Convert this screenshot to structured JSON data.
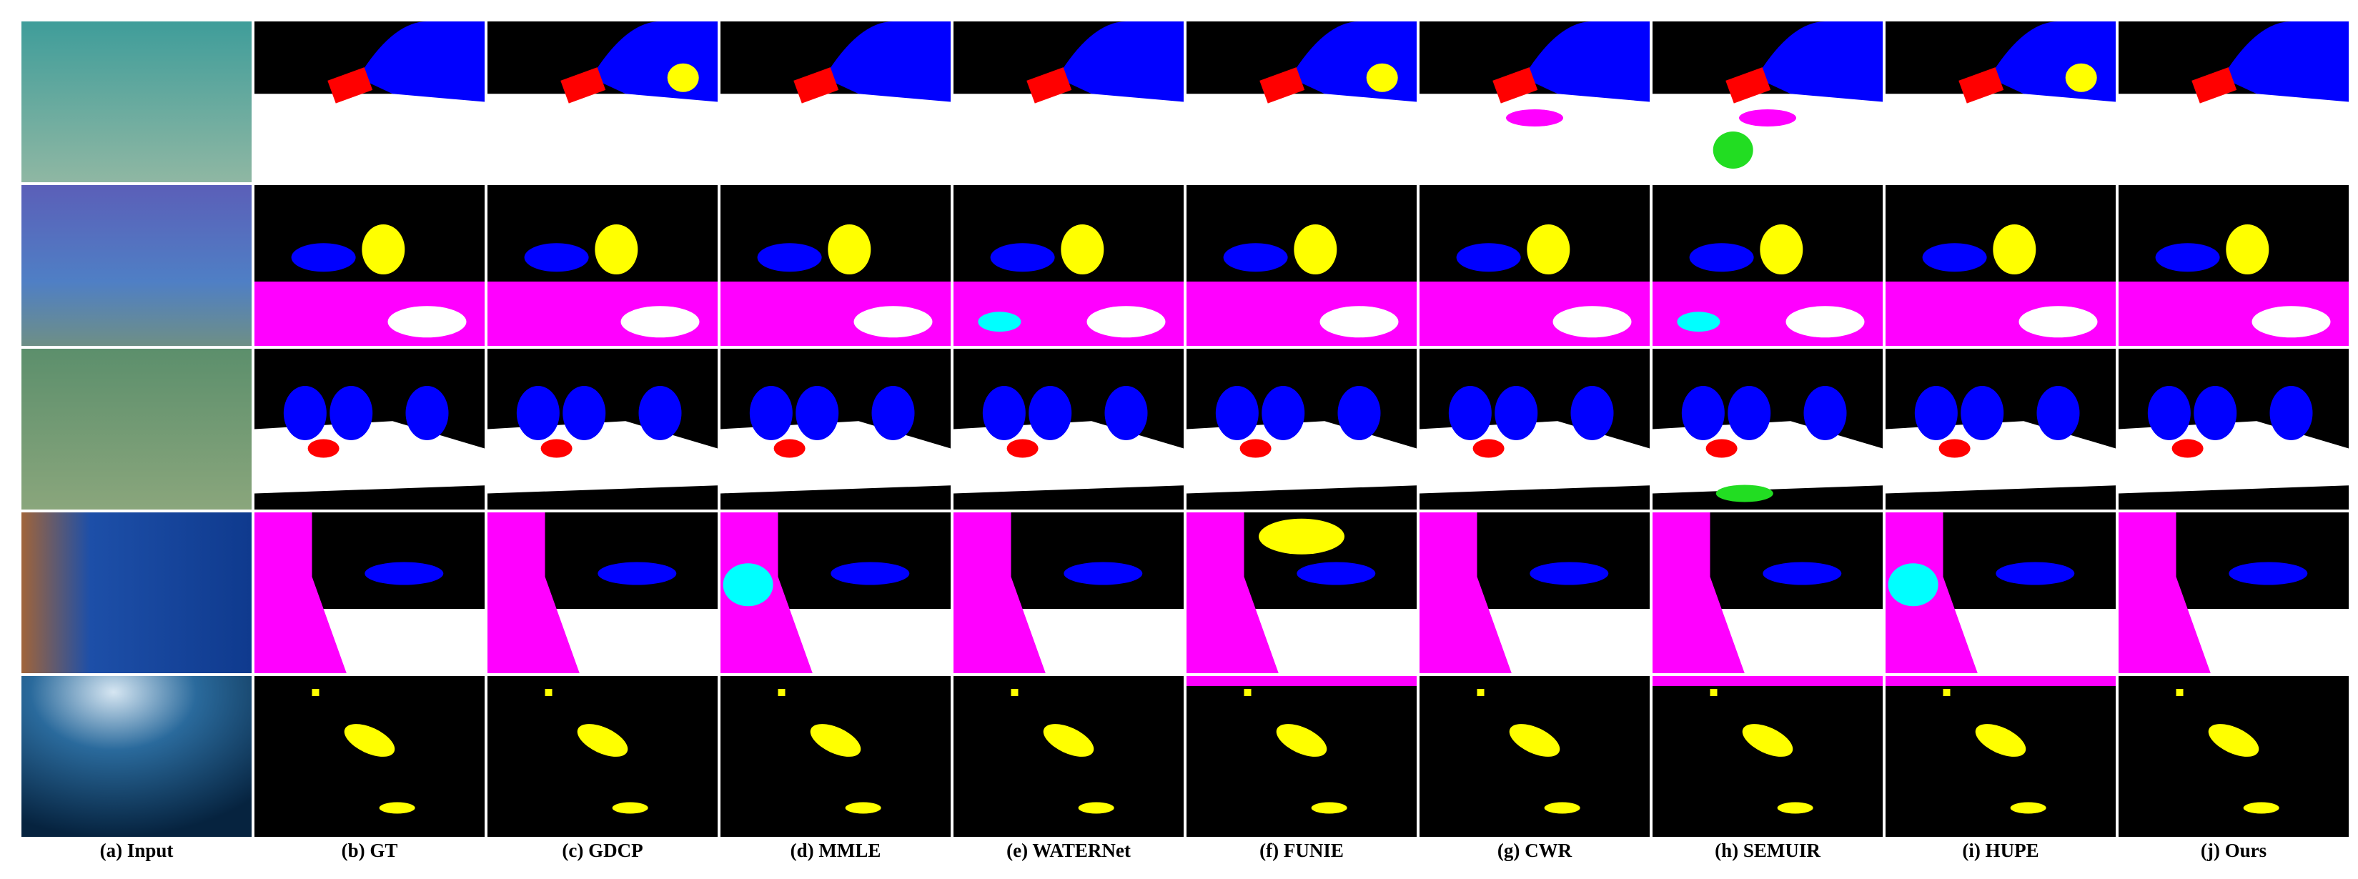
{
  "figure": {
    "captions": [
      "(a) Input",
      "(b) GT",
      "(c) GDCP",
      "(d) MMLE",
      "(e) WATERNet",
      "(f) FUNIE",
      "(g) CWR",
      "(h) SEMUIR",
      "(i) HUPE",
      "(j) Ours"
    ]
  }
}
